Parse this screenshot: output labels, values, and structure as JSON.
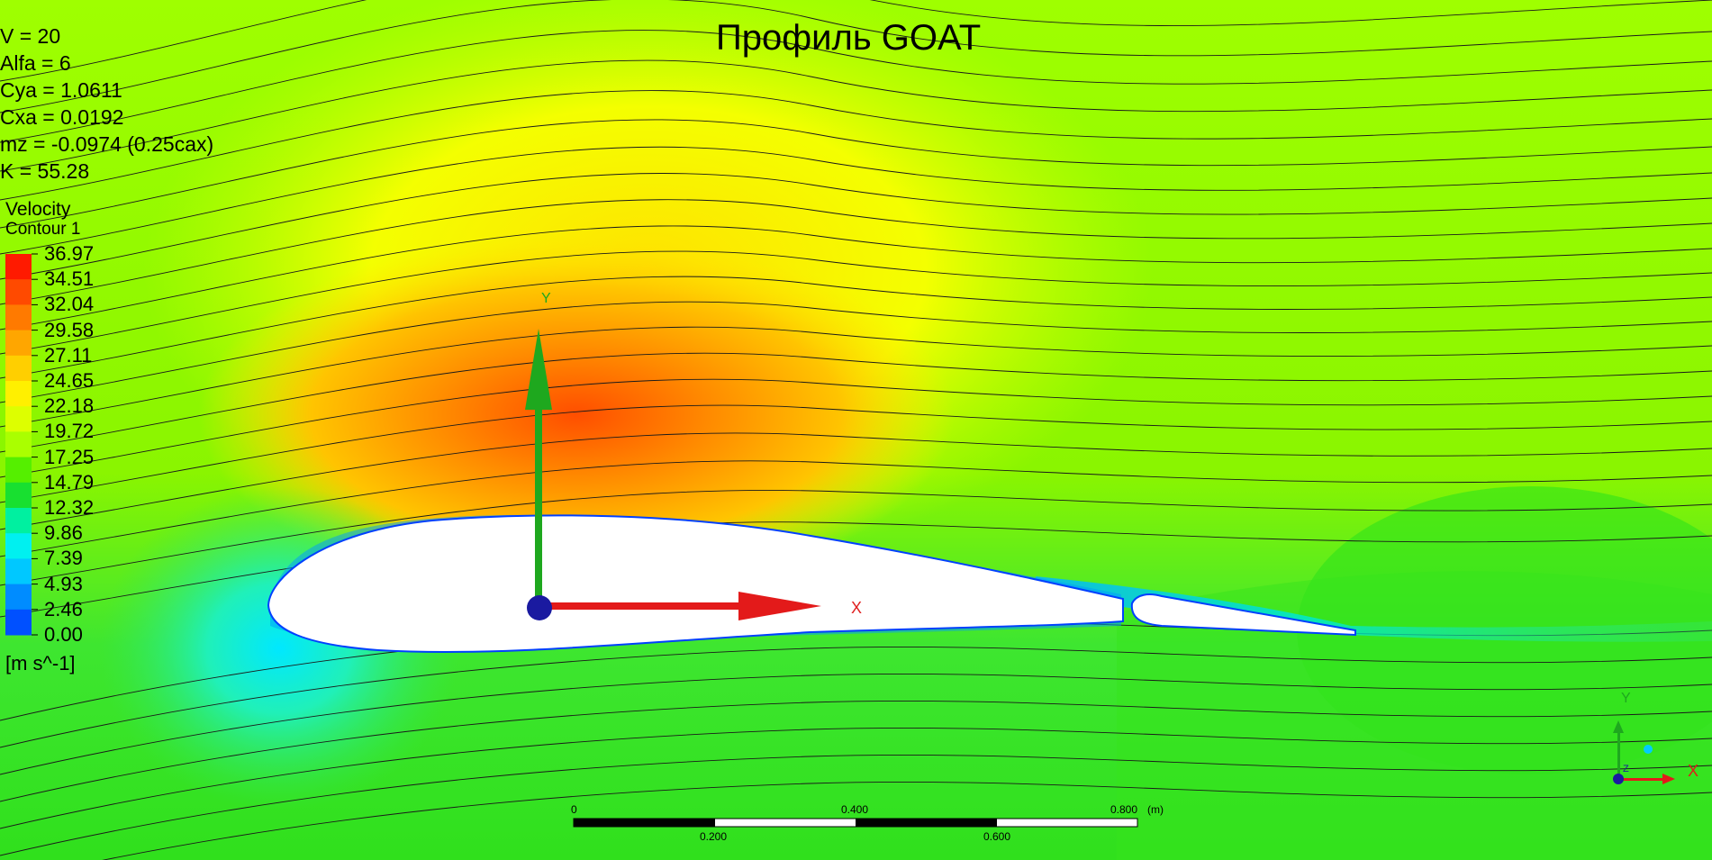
{
  "title": "Профиль GOAT",
  "params": [
    "V = 20",
    "Alfa = 6",
    "Cya = 1.0611",
    "Cxa = 0.0192",
    "mz = -0.0974  (0.25cax)",
    "K = 55.28"
  ],
  "legend": {
    "title_line1": "Velocity",
    "title_line2": "Contour 1",
    "ticks": [
      "36.97",
      "34.51",
      "32.04",
      "29.58",
      "27.11",
      "24.65",
      "22.18",
      "19.72",
      "17.25",
      "14.79",
      "12.32",
      "9.86",
      "7.39",
      "4.93",
      "2.46",
      "0.00"
    ],
    "units": "[m s^-1]",
    "colors": [
      "#ff1a00",
      "#ff4a00",
      "#ff7a00",
      "#ffa600",
      "#ffcf00",
      "#fff000",
      "#ddff00",
      "#aaff00",
      "#55ef00",
      "#18e030",
      "#00f0a0",
      "#00f0f0",
      "#00c8ff",
      "#008cff",
      "#0050ff",
      "#0010f0"
    ]
  },
  "axes": {
    "y_label": "Y",
    "x_label": "X"
  },
  "scale_bar": {
    "labels_top": [
      "0",
      "0.400",
      "0.800"
    ],
    "labels_bottom": [
      "0.200",
      "0.600"
    ],
    "unit": "(m)"
  },
  "triad": {
    "y_label": "Y",
    "x_label": "X",
    "z_label": "Z"
  }
}
